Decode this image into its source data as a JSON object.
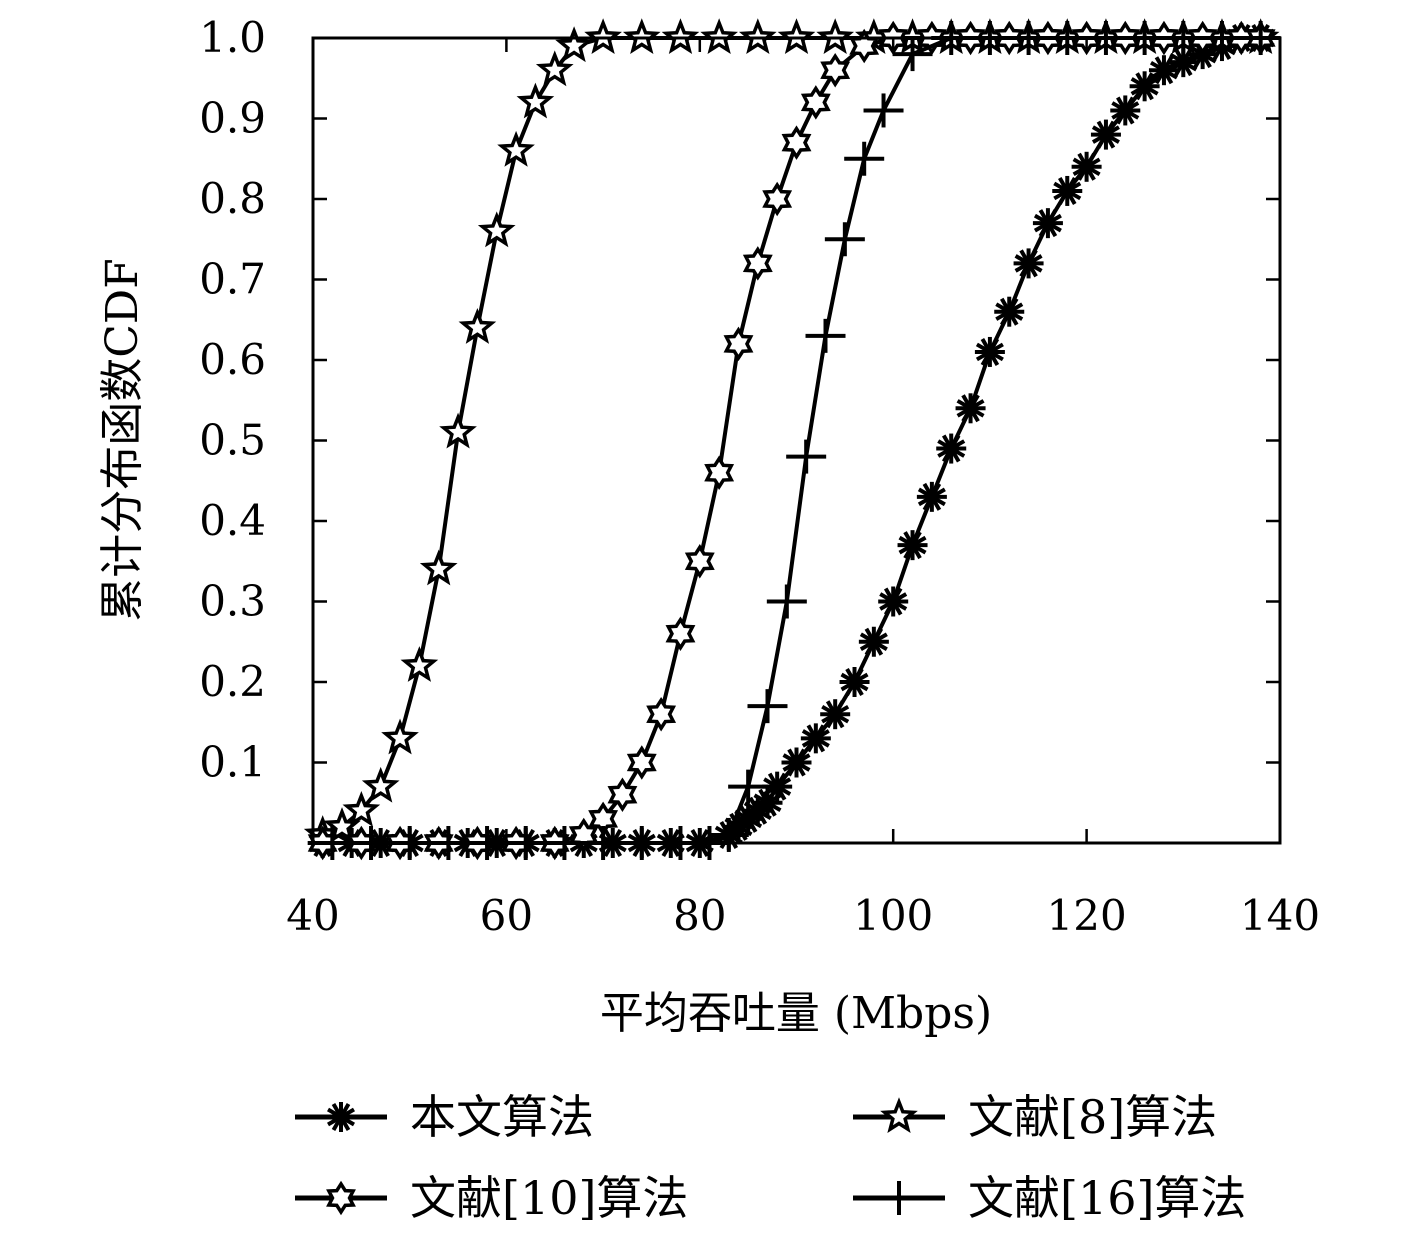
{
  "chart_data": {
    "type": "line",
    "title": "",
    "xlabel": "平均吞吐量 (Mbps)",
    "ylabel": "累计分布函数CDF",
    "xlim": [
      40,
      140
    ],
    "ylim": [
      0,
      1
    ],
    "x_ticks": [
      "40",
      "60",
      "80",
      "100",
      "120",
      "140"
    ],
    "y_ticks": [
      "0.1",
      "0.2",
      "0.3",
      "0.4",
      "0.5",
      "0.6",
      "0.7",
      "0.8",
      "0.9",
      "1.0"
    ],
    "grid": false,
    "legend_position": "bottom",
    "series": [
      {
        "name": "本文算法",
        "marker": "asterisk",
        "x": [
          41,
          44,
          47,
          50,
          53,
          56,
          59,
          62,
          65,
          68,
          71,
          74,
          77,
          80,
          83,
          84,
          85,
          86,
          87,
          88,
          90,
          92,
          94,
          96,
          98,
          100,
          102,
          104,
          106,
          108,
          110,
          112,
          114,
          116,
          118,
          120,
          122,
          124,
          126,
          128,
          130,
          132,
          134,
          136,
          138
        ],
        "y": [
          0,
          0,
          0,
          0,
          0,
          0,
          0,
          0,
          0,
          0,
          0,
          0,
          0,
          0,
          0.01,
          0.02,
          0.03,
          0.04,
          0.05,
          0.07,
          0.1,
          0.13,
          0.16,
          0.2,
          0.25,
          0.3,
          0.37,
          0.43,
          0.49,
          0.54,
          0.61,
          0.66,
          0.72,
          0.77,
          0.81,
          0.84,
          0.88,
          0.91,
          0.94,
          0.96,
          0.97,
          0.98,
          0.99,
          1.0,
          1.0
        ]
      },
      {
        "name": "文献[8]算法",
        "marker": "star",
        "x": [
          41,
          43,
          45,
          47,
          49,
          51,
          53,
          55,
          57,
          59,
          61,
          63,
          65,
          67,
          70,
          74,
          78,
          82,
          86,
          90,
          94,
          98,
          102,
          106,
          110,
          114,
          118,
          122,
          126,
          130,
          134,
          138
        ],
        "y": [
          0.01,
          0.02,
          0.04,
          0.07,
          0.13,
          0.22,
          0.34,
          0.51,
          0.64,
          0.76,
          0.86,
          0.92,
          0.96,
          0.99,
          1.0,
          1.0,
          1.0,
          1.0,
          1.0,
          1.0,
          1.0,
          1.0,
          1.0,
          1.0,
          1.0,
          1.0,
          1.0,
          1.0,
          1.0,
          1.0,
          1.0,
          1.0
        ]
      },
      {
        "name": "文献[10]算法",
        "marker": "hexagram",
        "x": [
          41,
          45,
          49,
          53,
          57,
          61,
          65,
          68,
          70,
          72,
          74,
          76,
          78,
          80,
          82,
          84,
          86,
          88,
          90,
          92,
          94,
          97,
          100,
          104,
          108,
          112,
          116,
          120,
          124,
          128,
          132,
          136,
          138
        ],
        "y": [
          0,
          0,
          0,
          0,
          0,
          0,
          0,
          0.01,
          0.03,
          0.06,
          0.1,
          0.16,
          0.26,
          0.35,
          0.46,
          0.62,
          0.72,
          0.8,
          0.87,
          0.92,
          0.96,
          0.99,
          1.0,
          1.0,
          1.0,
          1.0,
          1.0,
          1.0,
          1.0,
          1.0,
          1.0,
          1.0,
          1.0
        ]
      },
      {
        "name": "文献[16]算法",
        "marker": "plus",
        "x": [
          42,
          46,
          50,
          54,
          58,
          62,
          66,
          70,
          74,
          78,
          81,
          83,
          85,
          87,
          89,
          91,
          93,
          95,
          97,
          99,
          102,
          106,
          110,
          114,
          118,
          122,
          126,
          130,
          134,
          138
        ],
        "y": [
          0,
          0,
          0,
          0,
          0,
          0,
          0,
          0,
          0,
          0,
          0,
          0.01,
          0.07,
          0.17,
          0.3,
          0.48,
          0.63,
          0.75,
          0.85,
          0.91,
          0.98,
          1.0,
          1.0,
          1.0,
          1.0,
          1.0,
          1.0,
          1.0,
          1.0,
          1.0
        ]
      }
    ]
  }
}
